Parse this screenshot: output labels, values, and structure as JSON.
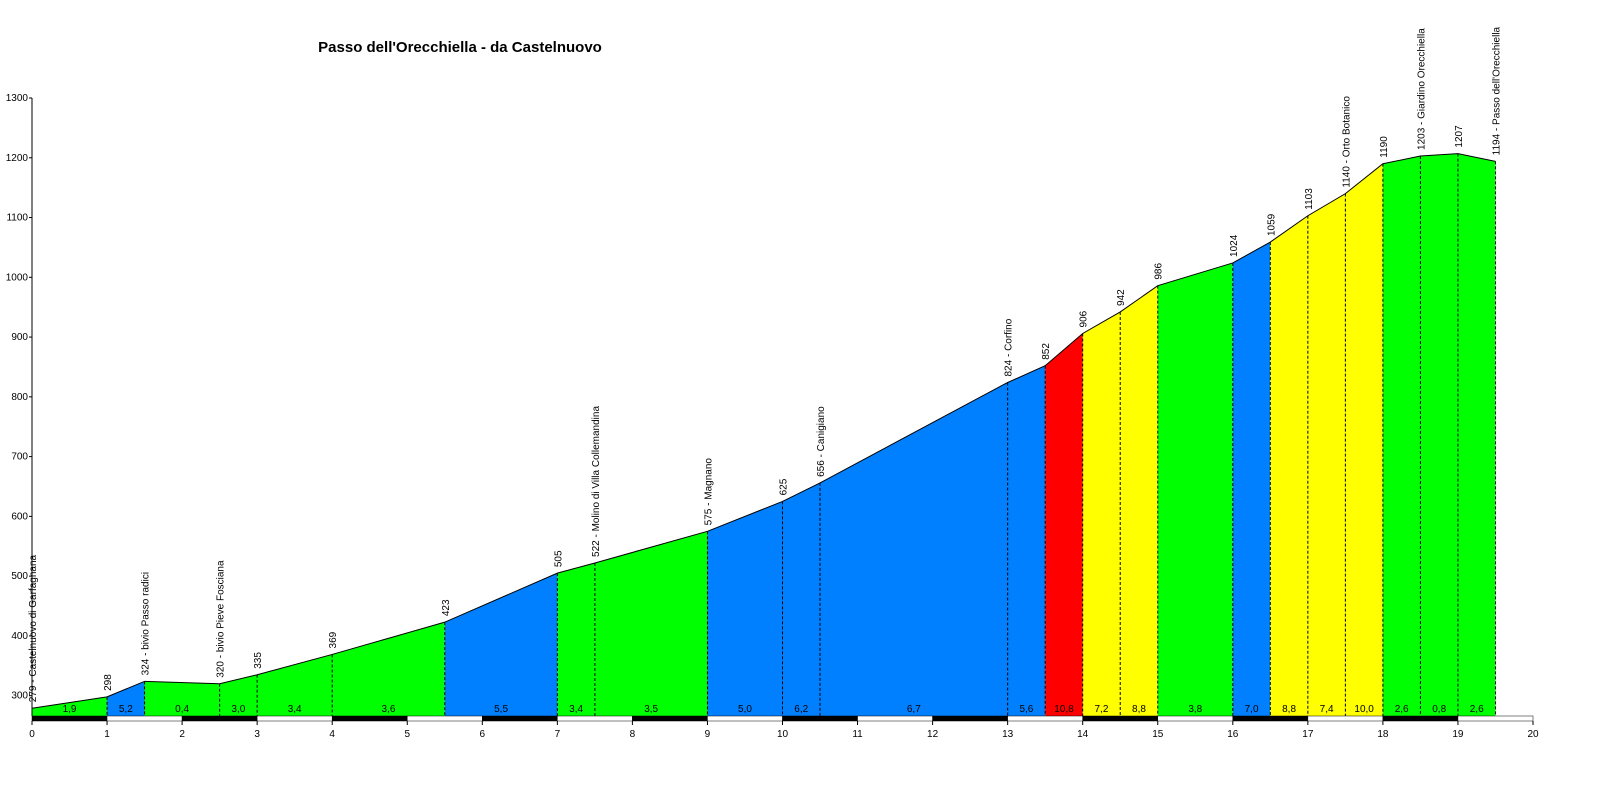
{
  "chart_data": {
    "type": "profile",
    "title": "Passo dell'Orecchiella - da Castelnuovo",
    "x": [
      0,
      1,
      1.5,
      2.5,
      3,
      4,
      5.5,
      7,
      7.5,
      9,
      10,
      10.5,
      13,
      13.5,
      14,
      14.5,
      15,
      16,
      16.5,
      17,
      17.5,
      18,
      18.5,
      19,
      19.5
    ],
    "values": [
      279,
      298,
      324,
      320,
      335,
      369,
      423,
      505,
      522,
      575,
      625,
      656,
      824,
      852,
      906,
      942,
      986,
      1024,
      1059,
      1103,
      1140,
      1190,
      1203,
      1207,
      1194
    ],
    "value_labels": [
      "279 - Castelnuovo di Garfagnana",
      "298",
      "324 - bivio Passo radici",
      "320 - bivio Pieve Fosciana",
      "335",
      "369",
      "423",
      "505",
      "522 - Molino di Villa Collemandina",
      "575 - Magnano",
      "625",
      "656 - Canigiano",
      "824 - Corfino",
      "852",
      "906",
      "942",
      "986",
      "1024",
      "1059",
      "1103",
      "1140 - Orto Botanico",
      "1190",
      "1203 - Giardino Orecchiella",
      "1207",
      "1194 - Passo dell'Orecchiella"
    ],
    "segments": {
      "values": [
        1.9,
        5.2,
        0.4,
        3.0,
        3.4,
        3.6,
        5.5,
        3.4,
        3.5,
        5.0,
        6.2,
        6.7,
        5.6,
        10.8,
        7.2,
        8.8,
        3.8,
        7.0,
        8.8,
        7.4,
        10.0,
        2.6,
        0.8,
        2.6
      ],
      "value_labels": [
        "1,9",
        "5,2",
        "0,4",
        "3,0",
        "3,4",
        "3,6",
        "5,5",
        "3,4",
        "3,5",
        "5,0",
        "6,2",
        "6,7",
        "5,6",
        "10,8",
        "7,2",
        "8,8",
        "3,8",
        "7,0",
        "8,8",
        "7,4",
        "10,0",
        "2,6",
        "0,8",
        "2,6"
      ],
      "colors": [
        "#00ff00",
        "#0080ff",
        "#00ff00",
        "#00ff00",
        "#00ff00",
        "#00ff00",
        "#0080ff",
        "#00ff00",
        "#00ff00",
        "#0080ff",
        "#0080ff",
        "#0080ff",
        "#0080ff",
        "#ff0000",
        "#ffff00",
        "#ffff00",
        "#00ff00",
        "#0080ff",
        "#ffff00",
        "#ffff00",
        "#ffff00",
        "#00ff00",
        "#00ff00",
        "#00ff00"
      ]
    },
    "xlim": [
      0,
      20
    ],
    "xticks": [
      0,
      1,
      2,
      3,
      4,
      5,
      6,
      7,
      8,
      9,
      10,
      11,
      12,
      13,
      14,
      15,
      16,
      17,
      18,
      19,
      20
    ],
    "ylim": [
      266,
      1300
    ],
    "yticks": [
      300,
      400,
      500,
      600,
      700,
      800,
      900,
      1000,
      1100,
      1200,
      1300
    ]
  }
}
